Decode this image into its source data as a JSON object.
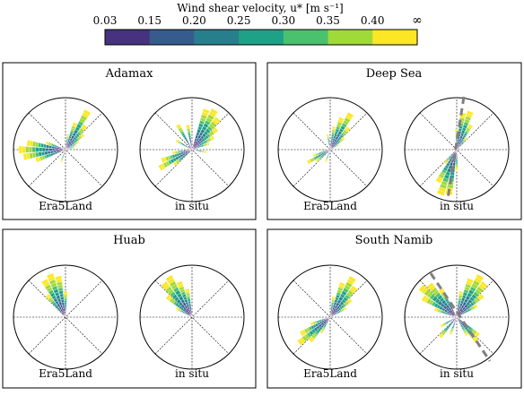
{
  "colorbar": {
    "title": "Wind shear velocity, u* [m s⁻¹]",
    "ticks": [
      "0.03",
      "0.15",
      "0.20",
      "0.25",
      "0.30",
      "0.35",
      "0.40",
      "∞"
    ],
    "colors": [
      "#440154",
      "#46327e",
      "#365c8d",
      "#277f8e",
      "#1fa187",
      "#4ac16d",
      "#a0da39",
      "#fde725"
    ]
  },
  "chart_data": [
    {
      "type": "windrose",
      "title": "Adamax",
      "roses": [
        {
          "label": "Era5Land",
          "petals": [
            {
              "dir": 30,
              "len": 0.86
            },
            {
              "dir": 40,
              "len": 0.6
            },
            {
              "dir": 50,
              "len": 0.45
            },
            {
              "dir": 60,
              "len": 0.3
            },
            {
              "dir": 70,
              "len": 0.22
            },
            {
              "dir": 80,
              "len": 0.18
            },
            {
              "dir": 250,
              "len": 0.6
            },
            {
              "dir": 260,
              "len": 0.82
            },
            {
              "dir": 270,
              "len": 0.9
            },
            {
              "dir": 280,
              "len": 0.75
            },
            {
              "dir": 290,
              "len": 0.4
            },
            {
              "dir": 200,
              "len": 0.25
            },
            {
              "dir": 10,
              "len": 0.3
            },
            {
              "dir": 20,
              "len": 0.55
            }
          ]
        },
        {
          "label": "in situ",
          "petals": [
            {
              "dir": 20,
              "len": 0.82
            },
            {
              "dir": 30,
              "len": 0.88
            },
            {
              "dir": 40,
              "len": 0.78
            },
            {
              "dir": 50,
              "len": 0.62
            },
            {
              "dir": 60,
              "len": 0.48
            },
            {
              "dir": 70,
              "len": 0.35
            },
            {
              "dir": 240,
              "len": 0.72
            },
            {
              "dir": 250,
              "len": 0.62
            },
            {
              "dir": 230,
              "len": 0.45
            },
            {
              "dir": 260,
              "len": 0.38
            },
            {
              "dir": 330,
              "len": 0.55
            },
            {
              "dir": 350,
              "len": 0.48
            },
            {
              "dir": 300,
              "len": 0.35
            },
            {
              "dir": 100,
              "len": 0.28
            }
          ]
        }
      ]
    },
    {
      "type": "windrose",
      "title": "Deep Sea",
      "roses": [
        {
          "label": "Era5Land",
          "petals": [
            {
              "dir": 10,
              "len": 0.45
            },
            {
              "dir": 20,
              "len": 0.65
            },
            {
              "dir": 30,
              "len": 0.8
            },
            {
              "dir": 40,
              "len": 0.55
            },
            {
              "dir": 50,
              "len": 0.35
            },
            {
              "dir": 230,
              "len": 0.35
            },
            {
              "dir": 240,
              "len": 0.5
            },
            {
              "dir": 250,
              "len": 0.35
            },
            {
              "dir": 200,
              "len": 0.25
            },
            {
              "dir": 350,
              "len": 0.3
            },
            {
              "dir": 260,
              "len": 0.2
            },
            {
              "dir": 60,
              "len": 0.2
            }
          ]
        },
        {
          "label": "in situ",
          "petals": [
            {
              "dir": 10,
              "len": 0.72
            },
            {
              "dir": 20,
              "len": 0.78
            },
            {
              "dir": 30,
              "len": 0.55
            },
            {
              "dir": 190,
              "len": 0.88
            },
            {
              "dir": 200,
              "len": 0.92
            },
            {
              "dir": 210,
              "len": 0.72
            },
            {
              "dir": 180,
              "len": 0.4
            },
            {
              "dir": 220,
              "len": 0.35
            },
            {
              "dir": 0,
              "len": 0.4
            },
            {
              "dir": 40,
              "len": 0.3
            }
          ]
        }
      ]
    },
    {
      "type": "windrose",
      "title": "Huab",
      "roses": [
        {
          "label": "Era5Land",
          "petals": [
            {
              "dir": 330,
              "len": 0.82
            },
            {
              "dir": 340,
              "len": 0.88
            },
            {
              "dir": 350,
              "len": 0.8
            },
            {
              "dir": 320,
              "len": 0.55
            },
            {
              "dir": 0,
              "len": 0.5
            }
          ]
        },
        {
          "label": "in situ",
          "petals": [
            {
              "dir": 310,
              "len": 0.62
            },
            {
              "dir": 320,
              "len": 0.85
            },
            {
              "dir": 330,
              "len": 0.9
            },
            {
              "dir": 340,
              "len": 0.72
            },
            {
              "dir": 350,
              "len": 0.55
            },
            {
              "dir": 300,
              "len": 0.35
            }
          ]
        }
      ]
    },
    {
      "type": "windrose",
      "title": "South Namib",
      "roses": [
        {
          "label": "Era5Land",
          "petals": [
            {
              "dir": 20,
              "len": 0.7
            },
            {
              "dir": 30,
              "len": 0.88
            },
            {
              "dir": 40,
              "len": 0.75
            },
            {
              "dir": 50,
              "len": 0.52
            },
            {
              "dir": 60,
              "len": 0.35
            },
            {
              "dir": 220,
              "len": 0.6
            },
            {
              "dir": 230,
              "len": 0.78
            },
            {
              "dir": 240,
              "len": 0.65
            },
            {
              "dir": 250,
              "len": 0.4
            },
            {
              "dir": 210,
              "len": 0.35
            },
            {
              "dir": 10,
              "len": 0.4
            }
          ]
        },
        {
          "label": "in situ",
          "petals": [
            {
              "dir": 300,
              "len": 0.75
            },
            {
              "dir": 310,
              "len": 0.9
            },
            {
              "dir": 320,
              "len": 0.82
            },
            {
              "dir": 330,
              "len": 0.62
            },
            {
              "dir": 20,
              "len": 0.78
            },
            {
              "dir": 30,
              "len": 0.92
            },
            {
              "dir": 40,
              "len": 0.85
            },
            {
              "dir": 50,
              "len": 0.65
            },
            {
              "dir": 60,
              "len": 0.45
            },
            {
              "dir": 130,
              "len": 0.55
            },
            {
              "dir": 140,
              "len": 0.6
            },
            {
              "dir": 150,
              "len": 0.4
            },
            {
              "dir": 200,
              "len": 0.35
            },
            {
              "dir": 220,
              "len": 0.5
            },
            {
              "dir": 240,
              "len": 0.35
            },
            {
              "dir": 10,
              "len": 0.5
            },
            {
              "dir": 290,
              "len": 0.45
            }
          ]
        }
      ]
    }
  ]
}
